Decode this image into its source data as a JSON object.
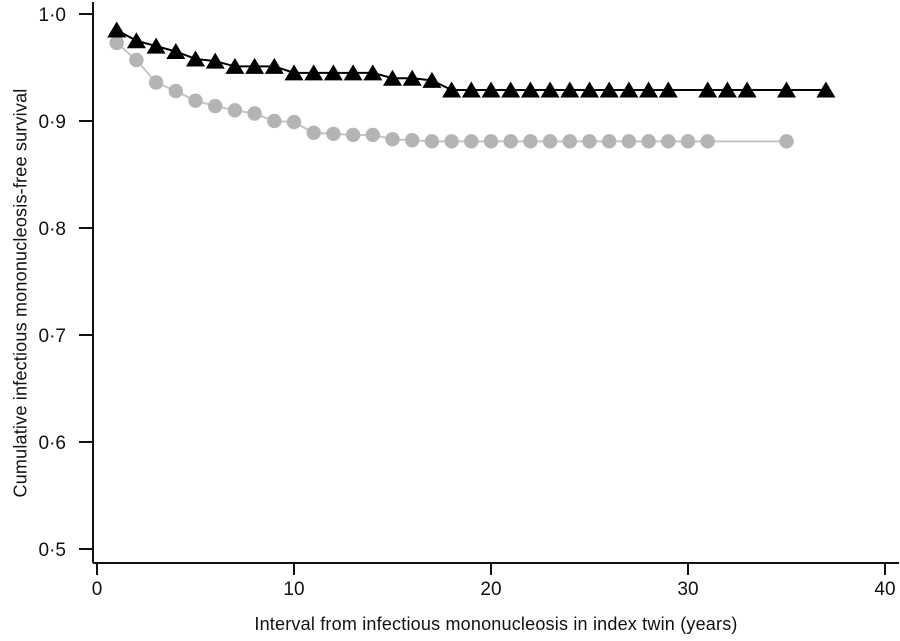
{
  "figure": {
    "background_color": "#ffffff",
    "axis_color": "#111111"
  },
  "chart_data": {
    "type": "line",
    "title": "",
    "xlabel": "Interval from infectious mononucleosis in index twin (years)",
    "ylabel": "Cumulative infectious mononucleosis-free survival",
    "xlim": [
      0,
      40
    ],
    "ylim": [
      0.5,
      1.0
    ],
    "grid": false,
    "legend": "none",
    "x_ticks": [
      {
        "value": 0,
        "label": "0"
      },
      {
        "value": 10,
        "label": "10"
      },
      {
        "value": 20,
        "label": "20"
      },
      {
        "value": 30,
        "label": "30"
      },
      {
        "value": 40,
        "label": "40"
      }
    ],
    "y_ticks": [
      {
        "value": 1.0,
        "label": "1·0"
      },
      {
        "value": 0.9,
        "label": "0·9"
      },
      {
        "value": 0.8,
        "label": "0·8"
      },
      {
        "value": 0.7,
        "label": "0·7"
      },
      {
        "value": 0.6,
        "label": "0·6"
      },
      {
        "value": 0.5,
        "label": "0·5"
      }
    ],
    "series": [
      {
        "name": "grey-circles",
        "marker": "circle",
        "marker_color": "#b4b4b4",
        "line_color": "#c4c4c4",
        "points": [
          [
            1,
            0.973
          ],
          [
            2,
            0.957
          ],
          [
            3,
            0.936
          ],
          [
            4,
            0.928
          ],
          [
            5,
            0.919
          ],
          [
            6,
            0.914
          ],
          [
            7,
            0.91
          ],
          [
            8,
            0.907
          ],
          [
            9,
            0.9
          ],
          [
            10,
            0.899
          ],
          [
            11,
            0.889
          ],
          [
            12,
            0.888
          ],
          [
            13,
            0.887
          ],
          [
            14,
            0.887
          ],
          [
            15,
            0.883
          ],
          [
            16,
            0.882
          ],
          [
            17,
            0.881
          ],
          [
            18,
            0.881
          ],
          [
            19,
            0.881
          ],
          [
            20,
            0.881
          ],
          [
            21,
            0.881
          ],
          [
            22,
            0.881
          ],
          [
            23,
            0.881
          ],
          [
            24,
            0.881
          ],
          [
            25,
            0.881
          ],
          [
            26,
            0.881
          ],
          [
            27,
            0.881
          ],
          [
            28,
            0.881
          ],
          [
            29,
            0.881
          ],
          [
            30,
            0.881
          ],
          [
            31,
            0.881
          ],
          [
            35,
            0.881
          ]
        ]
      },
      {
        "name": "black-triangles",
        "marker": "triangle",
        "marker_color": "#000000",
        "line_color": "#000000",
        "points": [
          [
            1,
            0.985
          ],
          [
            2,
            0.975
          ],
          [
            3,
            0.97
          ],
          [
            4,
            0.965
          ],
          [
            5,
            0.958
          ],
          [
            6,
            0.956
          ],
          [
            7,
            0.951
          ],
          [
            8,
            0.951
          ],
          [
            9,
            0.951
          ],
          [
            10,
            0.945
          ],
          [
            11,
            0.945
          ],
          [
            12,
            0.945
          ],
          [
            13,
            0.945
          ],
          [
            14,
            0.945
          ],
          [
            15,
            0.94
          ],
          [
            16,
            0.94
          ],
          [
            17,
            0.938
          ],
          [
            18,
            0.929
          ],
          [
            19,
            0.929
          ],
          [
            20,
            0.929
          ],
          [
            21,
            0.929
          ],
          [
            22,
            0.929
          ],
          [
            23,
            0.929
          ],
          [
            24,
            0.929
          ],
          [
            25,
            0.929
          ],
          [
            26,
            0.929
          ],
          [
            27,
            0.929
          ],
          [
            28,
            0.929
          ],
          [
            29,
            0.929
          ],
          [
            31,
            0.929
          ],
          [
            32,
            0.929
          ],
          [
            33,
            0.929
          ],
          [
            35,
            0.929
          ],
          [
            37,
            0.929
          ]
        ]
      }
    ]
  }
}
